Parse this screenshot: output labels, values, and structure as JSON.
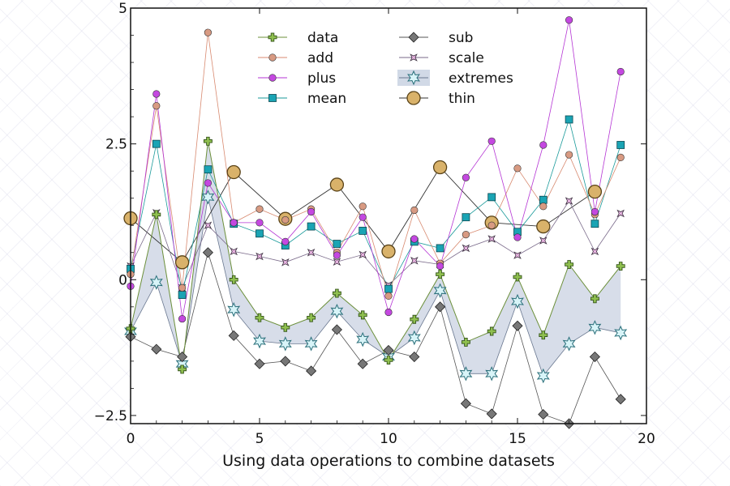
{
  "chart_data": {
    "type": "line",
    "title": "",
    "xlabel": "Using data operations to combine datasets",
    "ylabel": "",
    "xlim": [
      0,
      20
    ],
    "ylim": [
      -2.65,
      5
    ],
    "xticks": [
      0,
      5,
      10,
      15,
      20
    ],
    "xtick_labels": [
      "0",
      "5",
      "10",
      "15",
      "20"
    ],
    "yticks": [
      -2.5,
      0,
      2.5,
      5
    ],
    "ytick_labels": [
      "−2.5",
      "0",
      "2.5",
      "5"
    ],
    "grid": false,
    "legend_position": "top",
    "colors": {
      "data": "#6b8f3a",
      "add": "#d88a70",
      "plus": "#b535d4",
      "mean": "#1a9a9a",
      "sub": "#555555",
      "scale": "#7a6a8a",
      "extremes": "#c6cfe0",
      "thin": "#333333"
    },
    "x": [
      0,
      1,
      2,
      3,
      4,
      5,
      6,
      7,
      8,
      9,
      10,
      11,
      12,
      13,
      14,
      15,
      16,
      17,
      18,
      19
    ],
    "series": [
      {
        "name": "data",
        "marker": "plus",
        "values": [
          -0.9,
          1.2,
          -1.65,
          2.55,
          0.0,
          -0.7,
          -0.88,
          -0.7,
          -0.25,
          -0.65,
          -1.48,
          -0.73,
          0.1,
          -1.15,
          -0.95,
          0.05,
          -1.02,
          0.28,
          -0.35,
          0.25
        ]
      },
      {
        "name": "add",
        "marker": "circle",
        "values": [
          0.1,
          3.2,
          -0.15,
          4.55,
          1.05,
          1.3,
          1.1,
          1.3,
          0.5,
          1.35,
          -0.3,
          1.28,
          0.3,
          0.83,
          1.0,
          2.05,
          1.35,
          2.3,
          1.2,
          2.25
        ]
      },
      {
        "name": "plus",
        "marker": "circle",
        "values": [
          -0.12,
          3.42,
          -0.72,
          1.78,
          1.05,
          1.05,
          0.7,
          1.25,
          0.45,
          1.15,
          -0.6,
          0.75,
          0.25,
          1.88,
          2.55,
          0.78,
          2.48,
          4.78,
          1.25,
          3.83
        ]
      },
      {
        "name": "mean",
        "marker": "square",
        "values": [
          0.2,
          2.5,
          -0.28,
          2.03,
          1.03,
          0.85,
          0.63,
          0.98,
          0.66,
          0.9,
          -0.17,
          0.7,
          0.58,
          1.15,
          1.52,
          0.88,
          1.47,
          2.95,
          1.03,
          2.48
        ]
      },
      {
        "name": "sub",
        "marker": "diamond",
        "values": [
          -1.05,
          -1.28,
          -1.42,
          0.5,
          -1.03,
          -1.55,
          -1.5,
          -1.68,
          -0.92,
          -1.55,
          -1.3,
          -1.42,
          -0.5,
          -2.28,
          -2.47,
          -0.85,
          -2.48,
          -2.65,
          -1.42,
          -2.2
        ]
      },
      {
        "name": "scale",
        "marker": "star4",
        "values": [
          0.25,
          1.23,
          -0.15,
          1.0,
          0.52,
          0.43,
          0.32,
          0.5,
          0.33,
          0.46,
          -0.1,
          0.35,
          0.28,
          0.58,
          0.75,
          0.45,
          0.72,
          1.45,
          0.52,
          1.22
        ]
      },
      {
        "name": "extremes",
        "marker": "star6",
        "values": [
          -0.95,
          -0.05,
          -1.55,
          1.52,
          -0.55,
          -1.13,
          -1.18,
          -1.18,
          -0.58,
          -1.1,
          -1.42,
          -1.07,
          -0.2,
          -1.73,
          -1.73,
          -0.4,
          -1.77,
          -1.18,
          -0.88,
          -0.98
        ]
      },
      {
        "name": "thin",
        "marker": "ring",
        "x": [
          0,
          2,
          4,
          6,
          8,
          10,
          12,
          14,
          16,
          18
        ],
        "values": [
          1.13,
          0.32,
          1.98,
          1.12,
          1.75,
          0.52,
          2.07,
          1.05,
          0.98,
          1.62
        ]
      }
    ]
  }
}
